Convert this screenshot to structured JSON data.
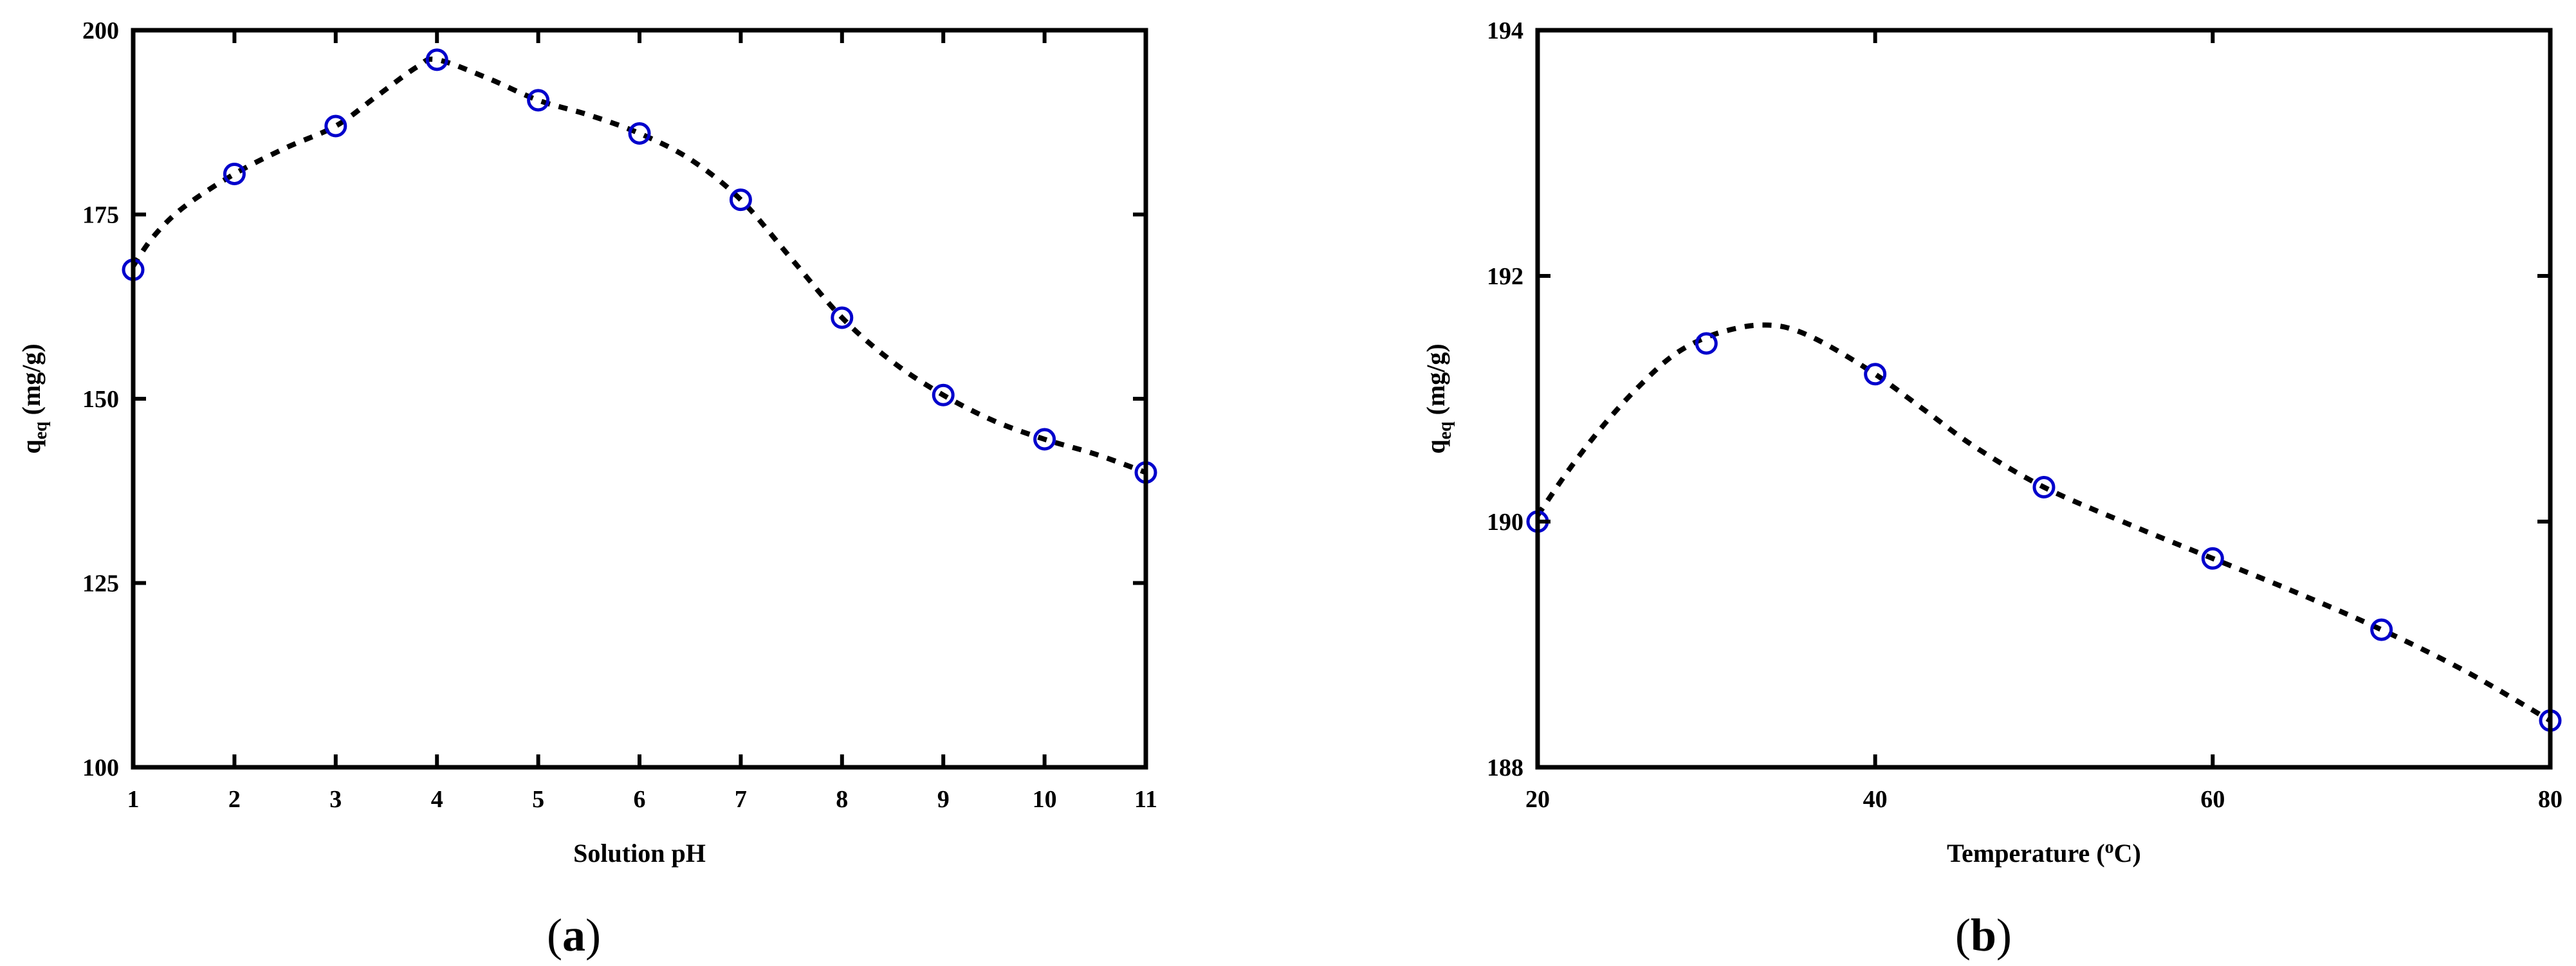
{
  "figure": {
    "caption_a": "a",
    "caption_b": "b"
  },
  "chart_data": [
    {
      "type": "scatter",
      "title": "",
      "xlabel": "Solution pH",
      "ylabel_main": "q",
      "ylabel_sub": "eq",
      "ylabel_unit": " (mg/g)",
      "xlim": [
        1,
        11
      ],
      "ylim": [
        100,
        200
      ],
      "xticks": [
        1,
        2,
        3,
        4,
        5,
        6,
        7,
        8,
        9,
        10,
        11
      ],
      "yticks": [
        100,
        125,
        150,
        175,
        200
      ],
      "grid": false,
      "marker_color": "#0000cc",
      "fit_color": "#000000",
      "points": {
        "x": [
          1,
          2,
          3,
          4,
          5,
          6,
          7,
          8,
          9,
          10,
          11
        ],
        "y": [
          167.5,
          180.5,
          187,
          196,
          190.5,
          186,
          177,
          161,
          150.5,
          144.5,
          140
        ]
      },
      "fit": {
        "x": [
          1,
          1.2,
          1.5,
          2,
          2.5,
          3,
          3.4,
          3.8,
          4,
          4.5,
          5,
          5.5,
          6,
          6.5,
          7,
          7.5,
          8,
          8.5,
          9,
          9.5,
          10,
          10.5,
          11
        ],
        "y": [
          168,
          172,
          176,
          180.5,
          184,
          187,
          191,
          195,
          196,
          193.5,
          190.5,
          188.5,
          186,
          182.5,
          177,
          169,
          161,
          155,
          150.5,
          147,
          144.5,
          142.5,
          140
        ]
      }
    },
    {
      "type": "scatter",
      "title": "",
      "xlabel_main": "Temperature (",
      "xlabel_sup": "o",
      "xlabel_end": "C)",
      "ylabel_main": "q",
      "ylabel_sub": "eq",
      "ylabel_unit": " (mg/g)",
      "xlim": [
        20,
        80
      ],
      "ylim": [
        188,
        194
      ],
      "xticks": [
        20,
        40,
        60,
        80
      ],
      "yticks": [
        188,
        190,
        192,
        194
      ],
      "grid": false,
      "marker_color": "#0000cc",
      "fit_color": "#000000",
      "points": {
        "x": [
          20,
          30,
          40,
          50,
          60,
          70,
          80
        ],
        "y": [
          190.0,
          191.45,
          191.2,
          190.28,
          189.7,
          189.12,
          188.38
        ]
      },
      "fit": {
        "x": [
          20,
          22,
          24,
          26,
          28,
          30,
          32,
          33.5,
          35,
          37,
          40,
          43,
          46,
          50,
          55,
          60,
          65,
          70,
          75,
          80
        ],
        "y": [
          190.05,
          190.45,
          190.8,
          191.1,
          191.35,
          191.5,
          191.58,
          191.6,
          191.57,
          191.45,
          191.2,
          190.9,
          190.6,
          190.28,
          189.98,
          189.7,
          189.42,
          189.12,
          188.78,
          188.38
        ]
      }
    }
  ]
}
